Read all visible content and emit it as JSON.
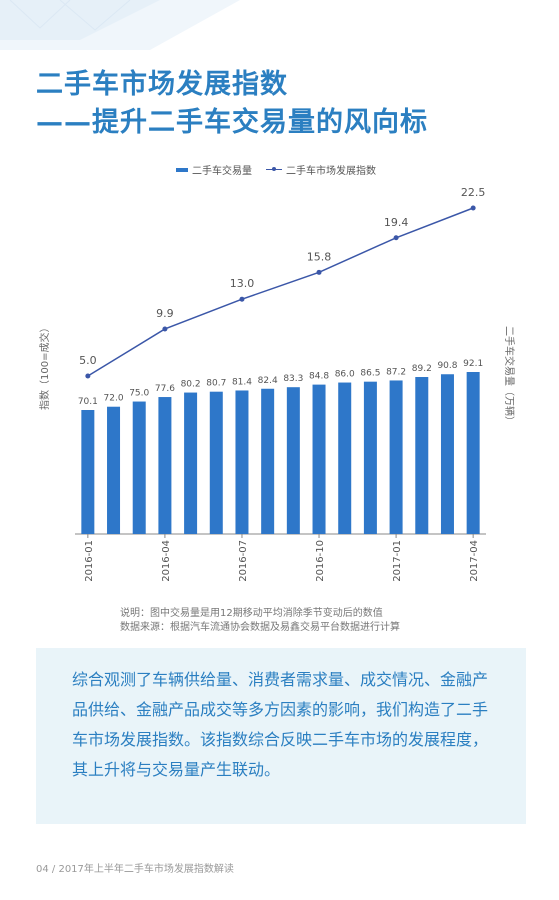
{
  "header": {
    "title_line1": "二手车市场发展指数",
    "title_line2": "——提升二手车交易量的风向标"
  },
  "chart_data": {
    "type": "bar",
    "legend": {
      "bar_series": "二手车交易量",
      "line_series": "二手车市场发展指数",
      "placement": "top"
    },
    "ylabel_left": "指数（100=成交）",
    "ylabel_right": "二手车交易量（万辆）",
    "xticks": [
      "2016-01",
      "2016-04",
      "2016-07",
      "2016-10",
      "2017-01",
      "2017-04"
    ],
    "categories": [
      "2016-01",
      "2016-02",
      "2016-03",
      "2016-04",
      "2016-05",
      "2016-06",
      "2016-07",
      "2016-08",
      "2016-09",
      "2016-10",
      "2016-11",
      "2016-12",
      "2017-01",
      "2017-02",
      "2017-03",
      "2017-04"
    ],
    "series": [
      {
        "name": "二手车交易量",
        "type": "bar",
        "color": "#2e77c9",
        "values": [
          70.1,
          72.0,
          75.0,
          77.6,
          80.2,
          80.7,
          81.4,
          82.4,
          83.3,
          84.8,
          86.0,
          86.5,
          87.2,
          89.2,
          90.8,
          92.1
        ]
      },
      {
        "name": "二手车市场发展指数",
        "type": "line",
        "color": "#3b57a8",
        "x": [
          "2016-01",
          "2016-04",
          "2016-07",
          "2016-10",
          "2017-01",
          "2017-04"
        ],
        "values": [
          5.0,
          9.9,
          13.0,
          15.8,
          19.4,
          22.5
        ]
      }
    ],
    "grid": false
  },
  "notes": {
    "line1": "说明：图中交易量是用12期移动平均消除季节变动后的数值",
    "line2": "数据来源：根据汽车流通协会数据及易鑫交易平台数据进行计算"
  },
  "summary": "综合观测了车辆供给量、消费者需求量、成交情况、金融产品供给、金融产品成交等多方因素的影响，我们构造了二手车市场发展指数。该指数综合反映二手车市场的发展程度，其上升将与交易量产生联动。",
  "footer": "04 / 2017年上半年二手车市场发展指数解读",
  "colors": {
    "accent": "#2b7fc1",
    "bar": "#2e77c9",
    "line": "#3b57a8",
    "box_bg": "#e9f4f9"
  }
}
